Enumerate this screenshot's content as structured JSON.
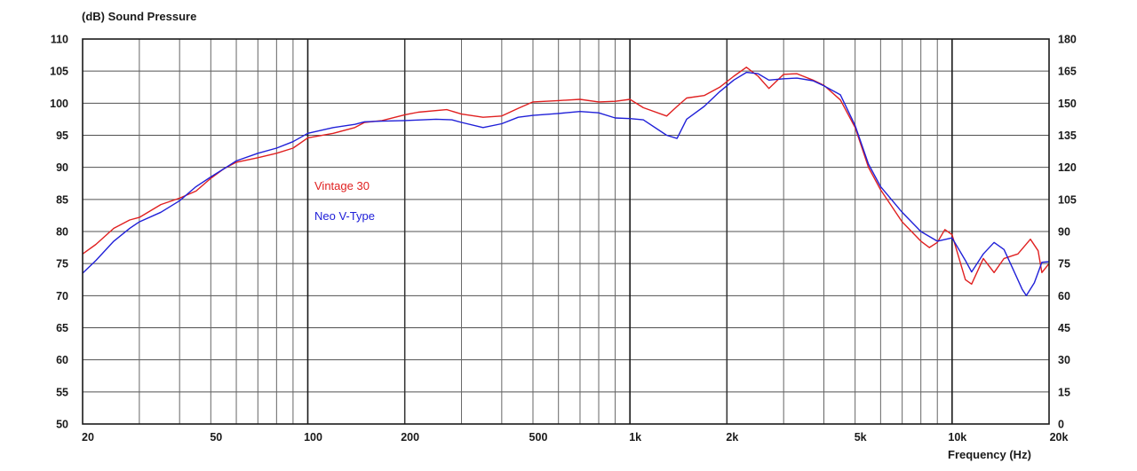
{
  "chart_data": {
    "type": "line",
    "title": "",
    "ylabel": "(dB)  Sound Pressure",
    "xlabel": "Frequency  (Hz)",
    "x_scale": "log",
    "xlim": [
      20,
      20000
    ],
    "ylim": [
      50,
      110
    ],
    "y2lim": [
      0,
      180
    ],
    "x_tick_labels": [
      {
        "value": 20,
        "label": "20"
      },
      {
        "value": 50,
        "label": "50"
      },
      {
        "value": 100,
        "label": "100"
      },
      {
        "value": 200,
        "label": "200"
      },
      {
        "value": 500,
        "label": "500"
      },
      {
        "value": 1000,
        "label": "1k"
      },
      {
        "value": 2000,
        "label": "2k"
      },
      {
        "value": 5000,
        "label": "5k"
      },
      {
        "value": 10000,
        "label": "10k"
      },
      {
        "value": 20000,
        "label": "20k"
      }
    ],
    "y_ticks": [
      110,
      105,
      100,
      95,
      90,
      85,
      80,
      75,
      70,
      65,
      60,
      55,
      50
    ],
    "y2_ticks": [
      180,
      165,
      150,
      135,
      120,
      105,
      90,
      75,
      60,
      45,
      30,
      15,
      0
    ],
    "grid": true,
    "legend_position": "upper-left-inside",
    "series": [
      {
        "name": "Vintage 30",
        "color": "#e02020",
        "points": [
          [
            20,
            76.5
          ],
          [
            22,
            78
          ],
          [
            25,
            80.5
          ],
          [
            28,
            81.8
          ],
          [
            30,
            82.2
          ],
          [
            35,
            84.2
          ],
          [
            40,
            85.2
          ],
          [
            45,
            86.3
          ],
          [
            50,
            88.3
          ],
          [
            55,
            89.8
          ],
          [
            60,
            90.8
          ],
          [
            70,
            91.5
          ],
          [
            80,
            92.2
          ],
          [
            90,
            93
          ],
          [
            100,
            94.6
          ],
          [
            120,
            95.3
          ],
          [
            140,
            96.2
          ],
          [
            150,
            97
          ],
          [
            170,
            97.3
          ],
          [
            200,
            98.2
          ],
          [
            220,
            98.6
          ],
          [
            270,
            99
          ],
          [
            300,
            98.3
          ],
          [
            350,
            97.8
          ],
          [
            400,
            98
          ],
          [
            450,
            99.2
          ],
          [
            500,
            100.2
          ],
          [
            600,
            100.4
          ],
          [
            700,
            100.6
          ],
          [
            800,
            100.2
          ],
          [
            900,
            100.3
          ],
          [
            1000,
            100.6
          ],
          [
            1100,
            99.3
          ],
          [
            1300,
            98
          ],
          [
            1400,
            99.5
          ],
          [
            1500,
            100.8
          ],
          [
            1700,
            101.2
          ],
          [
            1900,
            102.5
          ],
          [
            2100,
            104.2
          ],
          [
            2300,
            105.6
          ],
          [
            2500,
            104.2
          ],
          [
            2700,
            102.3
          ],
          [
            3000,
            104.5
          ],
          [
            3300,
            104.6
          ],
          [
            3700,
            103.6
          ],
          [
            4000,
            102.8
          ],
          [
            4500,
            100.5
          ],
          [
            5000,
            96.2
          ],
          [
            5500,
            90
          ],
          [
            6000,
            86.5
          ],
          [
            7000,
            81.5
          ],
          [
            8000,
            78.5
          ],
          [
            8500,
            77.5
          ],
          [
            9000,
            78.3
          ],
          [
            9500,
            80.3
          ],
          [
            10000,
            79.5
          ],
          [
            11000,
            72.5
          ],
          [
            11500,
            71.8
          ],
          [
            12500,
            75.8
          ],
          [
            13500,
            73.6
          ],
          [
            14500,
            75.8
          ],
          [
            16000,
            76.5
          ],
          [
            17500,
            78.8
          ],
          [
            18500,
            77
          ],
          [
            19000,
            73.6
          ],
          [
            20000,
            75
          ]
        ]
      },
      {
        "name": "Neo V-Type",
        "color": "#2020d8",
        "points": [
          [
            20,
            73.5
          ],
          [
            22,
            75.5
          ],
          [
            25,
            78.5
          ],
          [
            28,
            80.5
          ],
          [
            30,
            81.5
          ],
          [
            35,
            83
          ],
          [
            40,
            84.8
          ],
          [
            45,
            87
          ],
          [
            50,
            88.5
          ],
          [
            55,
            89.8
          ],
          [
            60,
            91
          ],
          [
            70,
            92.2
          ],
          [
            80,
            93
          ],
          [
            90,
            94
          ],
          [
            100,
            95.3
          ],
          [
            120,
            96.2
          ],
          [
            140,
            96.7
          ],
          [
            150,
            97.1
          ],
          [
            170,
            97.2
          ],
          [
            200,
            97.3
          ],
          [
            250,
            97.5
          ],
          [
            280,
            97.4
          ],
          [
            300,
            97
          ],
          [
            350,
            96.2
          ],
          [
            400,
            96.8
          ],
          [
            450,
            97.8
          ],
          [
            500,
            98.1
          ],
          [
            600,
            98.4
          ],
          [
            700,
            98.7
          ],
          [
            800,
            98.5
          ],
          [
            900,
            97.7
          ],
          [
            1000,
            97.6
          ],
          [
            1100,
            97.4
          ],
          [
            1300,
            95
          ],
          [
            1400,
            94.5
          ],
          [
            1500,
            97.5
          ],
          [
            1700,
            99.5
          ],
          [
            1900,
            101.8
          ],
          [
            2100,
            103.6
          ],
          [
            2300,
            104.8
          ],
          [
            2500,
            104.6
          ],
          [
            2700,
            103.6
          ],
          [
            3000,
            103.8
          ],
          [
            3300,
            103.9
          ],
          [
            3700,
            103.5
          ],
          [
            4000,
            102.7
          ],
          [
            4500,
            101.3
          ],
          [
            5000,
            96.5
          ],
          [
            5500,
            90.5
          ],
          [
            6000,
            87
          ],
          [
            7000,
            83
          ],
          [
            8000,
            80
          ],
          [
            9000,
            78.5
          ],
          [
            10000,
            79
          ],
          [
            11000,
            75.5
          ],
          [
            11500,
            73.7
          ],
          [
            12500,
            76.5
          ],
          [
            13500,
            78.3
          ],
          [
            14500,
            77.2
          ],
          [
            15500,
            74
          ],
          [
            16500,
            71
          ],
          [
            17000,
            70
          ],
          [
            18000,
            72
          ],
          [
            19000,
            75.2
          ],
          [
            20000,
            75.3
          ]
        ]
      }
    ]
  }
}
